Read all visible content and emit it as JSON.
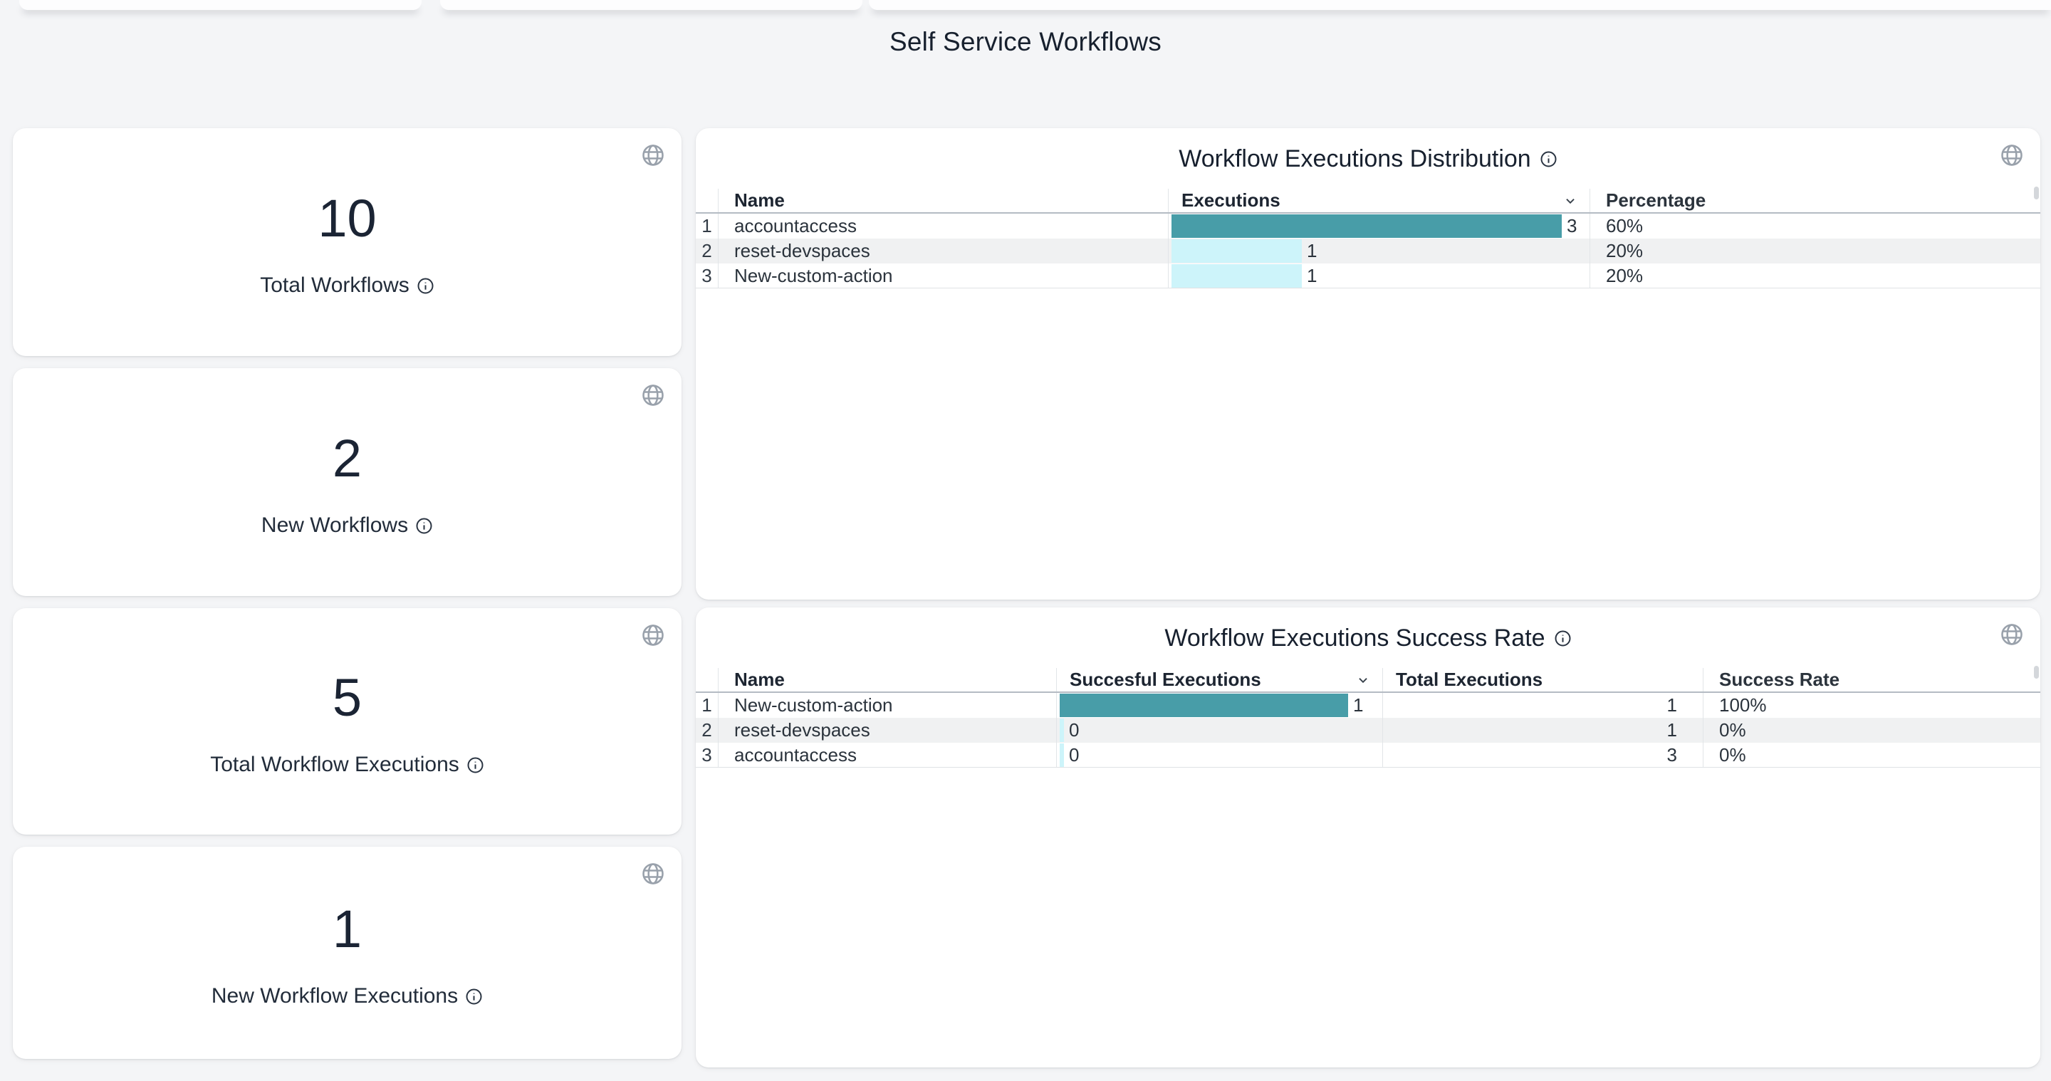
{
  "page": {
    "title": "Self Service Workflows"
  },
  "colors": {
    "bar_full": "#489da8",
    "bar_partial": "#cdf4fa",
    "text_dark": "#1b2434",
    "icon_gray": "#99a1ab"
  },
  "stat_cards": [
    {
      "value": "10",
      "label": "Total Workflows"
    },
    {
      "value": "2",
      "label": "New Workflows"
    },
    {
      "value": "5",
      "label": "Total Workflow Executions"
    },
    {
      "value": "1",
      "label": "New Workflow Executions"
    }
  ],
  "distribution_table": {
    "title": "Workflow Executions Distribution",
    "columns": {
      "name": "Name",
      "executions": "Executions",
      "percentage": "Percentage"
    },
    "sorted_column": "Executions",
    "max_executions": 3,
    "rows": [
      {
        "index": "1",
        "name": "accountaccess",
        "executions": 3,
        "percentage": "60%"
      },
      {
        "index": "2",
        "name": "reset-devspaces",
        "executions": 1,
        "percentage": "20%"
      },
      {
        "index": "3",
        "name": "New-custom-action",
        "executions": 1,
        "percentage": "20%"
      }
    ]
  },
  "success_table": {
    "title": "Workflow Executions Success Rate",
    "columns": {
      "name": "Name",
      "successful": "Succesful Executions",
      "total": "Total Executions",
      "rate": "Success Rate"
    },
    "sorted_column": "Succesful Executions",
    "max_successful": 1,
    "rows": [
      {
        "index": "1",
        "name": "New-custom-action",
        "successful": 1,
        "total": "1",
        "rate": "100%"
      },
      {
        "index": "2",
        "name": "reset-devspaces",
        "successful": 0,
        "total": "1",
        "rate": "0%"
      },
      {
        "index": "3",
        "name": "accountaccess",
        "successful": 0,
        "total": "3",
        "rate": "0%"
      }
    ]
  }
}
